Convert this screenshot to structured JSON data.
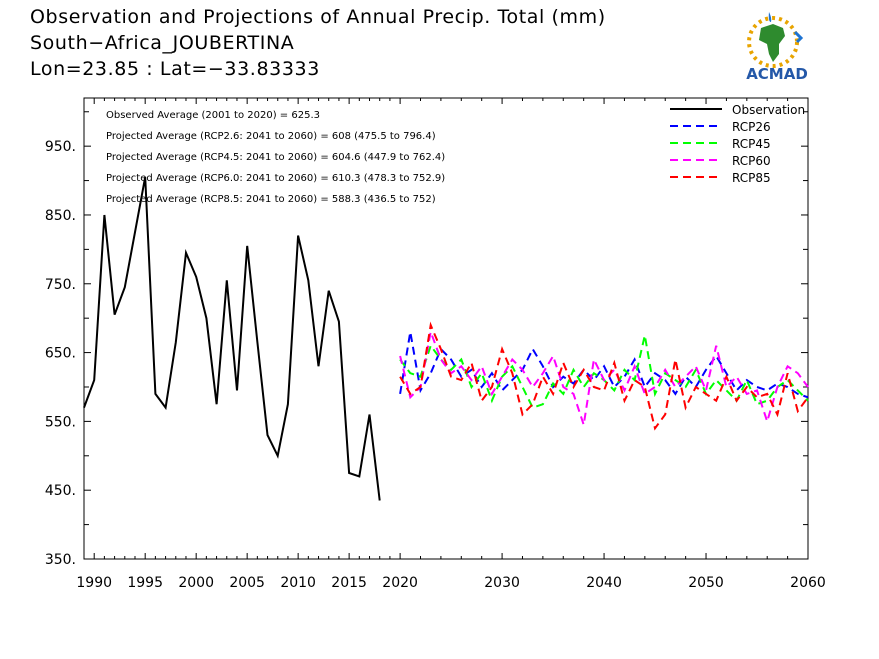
{
  "header": {
    "line1": "Observation and Projections of Annual Precip. Total (mm)",
    "line2": "South−Africa_JOUBERTINA",
    "line3": "Lon=23.85 : Lat=−33.83333"
  },
  "logo": {
    "text": "ACMAD",
    "icon": "africa-map-icon"
  },
  "stats": [
    "Observed Average (2001 to 2020) = 625.3",
    "Projected Average (RCP2.6: 2041 to 2060) = 608 (475.5 to 796.4)",
    "Projected Average (RCP4.5: 2041 to 2060) = 604.6 (447.9 to 762.4)",
    "Projected Average (RCP6.0: 2041 to 2060) = 610.3 (478.3 to 752.9)",
    "Projected Average (RCP8.5: 2041 to 2060) = 588.3 (436.5 to 752)"
  ],
  "chart_data": {
    "type": "line",
    "xlim": [
      1989,
      2060
    ],
    "ylim": [
      350,
      1020
    ],
    "xticks": [
      1990,
      1995,
      2000,
      2005,
      2010,
      2015,
      2020,
      2030,
      2040,
      2050,
      2060
    ],
    "yticks": [
      350,
      450,
      550,
      650,
      750,
      850,
      950
    ],
    "ytick_labels": [
      "350.",
      "450.",
      "550.",
      "650.",
      "750.",
      "850.",
      "950."
    ],
    "legend_position": "top-right",
    "series": [
      {
        "name": "Observation",
        "color": "#000000",
        "dashed": false,
        "x": [
          1989,
          1990,
          1991,
          1992,
          1993,
          1994,
          1995,
          1996,
          1997,
          1998,
          1999,
          2000,
          2001,
          2002,
          2003,
          2004,
          2005,
          2006,
          2007,
          2008,
          2009,
          2010,
          2011,
          2012,
          2013,
          2014,
          2015,
          2016,
          2017,
          2018,
          2019
        ],
        "y": [
          570,
          610,
          850,
          705,
          745,
          825,
          905,
          590,
          570,
          665,
          795,
          760,
          700,
          575,
          755,
          595,
          805,
          665,
          530,
          500,
          575,
          820,
          755,
          630,
          740,
          695,
          475,
          470,
          560,
          435,
          null
        ]
      },
      {
        "name": "RCP26",
        "color": "#0000ff",
        "dashed": true,
        "x": [
          2020,
          2021,
          2022,
          2023,
          2024,
          2025,
          2026,
          2027,
          2028,
          2029,
          2030,
          2031,
          2032,
          2033,
          2034,
          2035,
          2036,
          2037,
          2038,
          2039,
          2040,
          2041,
          2042,
          2043,
          2044,
          2045,
          2046,
          2047,
          2048,
          2049,
          2050,
          2051,
          2052,
          2053,
          2054,
          2055,
          2056,
          2057,
          2058,
          2059,
          2060
        ],
        "y": [
          590,
          680,
          595,
          620,
          655,
          640,
          615,
          625,
          600,
          620,
          595,
          610,
          625,
          655,
          630,
          600,
          615,
          605,
          625,
          610,
          630,
          600,
          615,
          640,
          600,
          620,
          610,
          590,
          615,
          600,
          625,
          645,
          620,
          595,
          610,
          600,
          595,
          605,
          600,
          590,
          585
        ]
      },
      {
        "name": "RCP45",
        "color": "#00ff00",
        "dashed": true,
        "x": [
          2020,
          2021,
          2022,
          2023,
          2024,
          2025,
          2026,
          2027,
          2028,
          2029,
          2030,
          2031,
          2032,
          2033,
          2034,
          2035,
          2036,
          2037,
          2038,
          2039,
          2040,
          2041,
          2042,
          2043,
          2044,
          2045,
          2046,
          2047,
          2048,
          2049,
          2050,
          2051,
          2052,
          2053,
          2054,
          2055,
          2056,
          2057,
          2058,
          2059,
          2060
        ],
        "y": [
          640,
          620,
          615,
          660,
          640,
          625,
          640,
          600,
          620,
          580,
          615,
          630,
          600,
          570,
          575,
          605,
          590,
          625,
          600,
          620,
          610,
          595,
          625,
          610,
          675,
          590,
          620,
          610,
          600,
          625,
          590,
          610,
          595,
          580,
          610,
          575,
          580,
          600,
          610,
          595,
          580
        ]
      },
      {
        "name": "RCP60",
        "color": "#ff00ff",
        "dashed": true,
        "x": [
          2020,
          2021,
          2022,
          2023,
          2024,
          2025,
          2026,
          2027,
          2028,
          2029,
          2030,
          2031,
          2032,
          2033,
          2034,
          2035,
          2036,
          2037,
          2038,
          2039,
          2040,
          2041,
          2042,
          2043,
          2044,
          2045,
          2046,
          2047,
          2048,
          2049,
          2050,
          2051,
          2052,
          2053,
          2054,
          2055,
          2056,
          2057,
          2058,
          2059,
          2060
        ],
        "y": [
          645,
          585,
          600,
          680,
          640,
          620,
          630,
          610,
          630,
          590,
          615,
          640,
          625,
          600,
          620,
          645,
          600,
          590,
          545,
          640,
          610,
          625,
          595,
          630,
          590,
          600,
          625,
          600,
          615,
          630,
          595,
          660,
          600,
          615,
          590,
          595,
          550,
          600,
          630,
          620,
          600
        ]
      },
      {
        "name": "RCP85",
        "color": "#ff0000",
        "dashed": true,
        "x": [
          2020,
          2021,
          2022,
          2023,
          2024,
          2025,
          2026,
          2027,
          2028,
          2029,
          2030,
          2031,
          2032,
          2033,
          2034,
          2035,
          2036,
          2037,
          2038,
          2039,
          2040,
          2041,
          2042,
          2043,
          2044,
          2045,
          2046,
          2047,
          2048,
          2049,
          2050,
          2051,
          2052,
          2053,
          2054,
          2055,
          2056,
          2057,
          2058,
          2059,
          2060
        ],
        "y": [
          615,
          590,
          600,
          690,
          655,
          615,
          610,
          635,
          580,
          600,
          655,
          620,
          560,
          575,
          615,
          590,
          635,
          600,
          625,
          600,
          595,
          635,
          580,
          610,
          600,
          540,
          560,
          640,
          570,
          600,
          590,
          580,
          615,
          580,
          600,
          585,
          590,
          560,
          620,
          565,
          585
        ]
      }
    ]
  }
}
